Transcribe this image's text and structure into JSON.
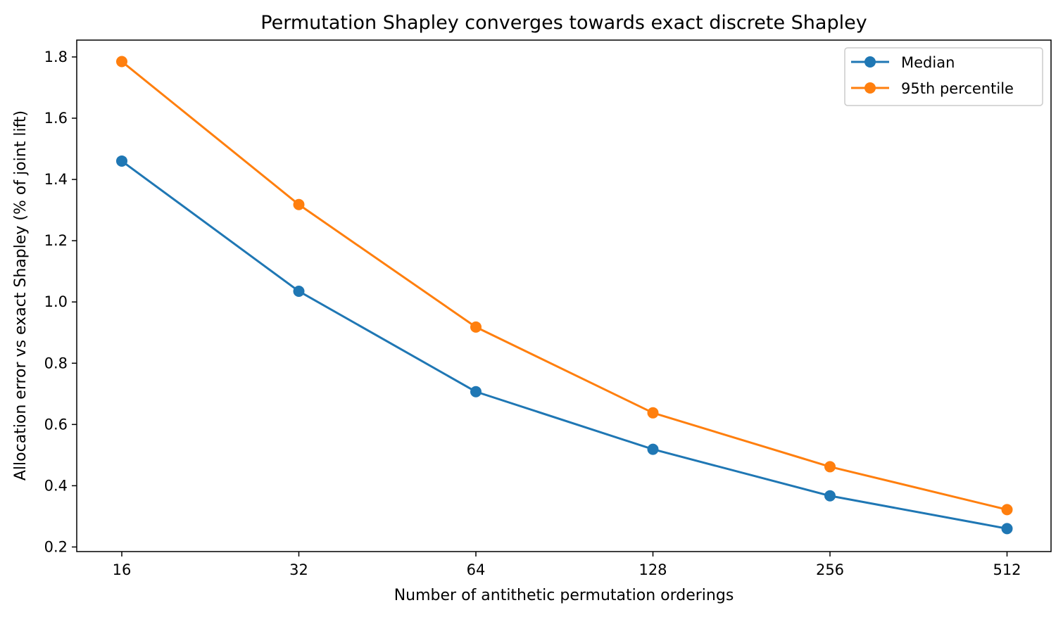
{
  "chart_data": {
    "type": "line",
    "title": "Permutation Shapley converges towards exact discrete Shapley",
    "xlabel": "Number of antithetic permutation orderings",
    "ylabel": "Allocation error vs exact Shapley (% of joint lift)",
    "x_scale": "log2",
    "x": [
      16,
      32,
      64,
      128,
      256,
      512
    ],
    "x_tick_labels": [
      "16",
      "32",
      "64",
      "128",
      "256",
      "512"
    ],
    "y_ticks": [
      0.2,
      0.4,
      0.6,
      0.8,
      1.0,
      1.2,
      1.4,
      1.6,
      1.8
    ],
    "y_tick_labels": [
      "0.2",
      "0.4",
      "0.6",
      "0.8",
      "1.0",
      "1.2",
      "1.4",
      "1.6",
      "1.8"
    ],
    "ylim": [
      0.185,
      1.855
    ],
    "grid": false,
    "legend_position": "top-right",
    "series": [
      {
        "name": "Median",
        "color": "#1f77b4",
        "marker": "circle",
        "values": [
          1.46,
          1.035,
          0.707,
          0.519,
          0.367,
          0.26
        ]
      },
      {
        "name": "95th percentile",
        "color": "#ff7f0e",
        "marker": "circle",
        "values": [
          1.785,
          1.318,
          0.918,
          0.638,
          0.462,
          0.322
        ]
      }
    ]
  }
}
